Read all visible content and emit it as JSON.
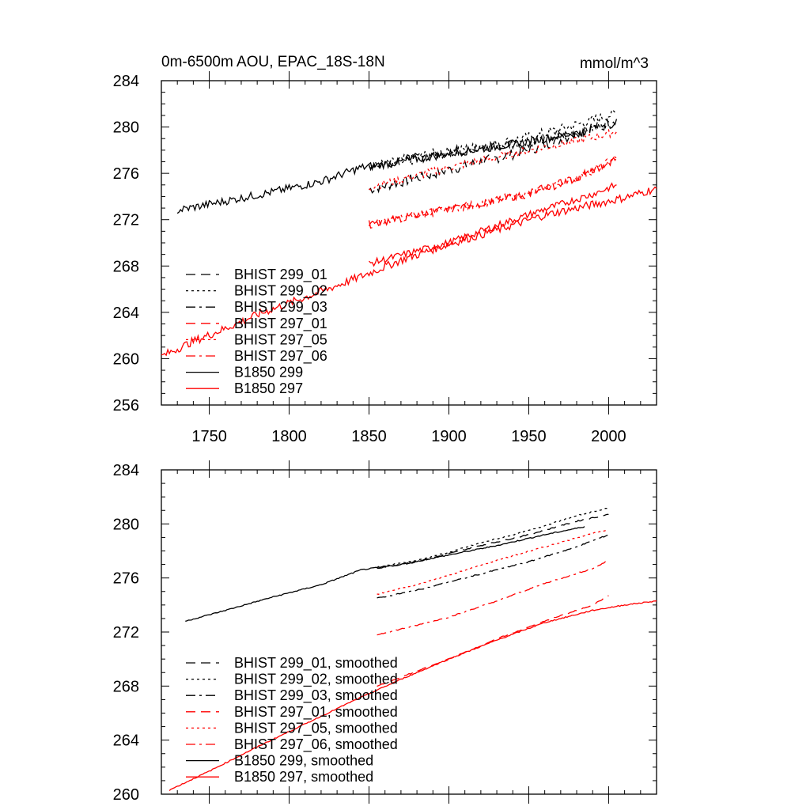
{
  "header": {
    "title": "0m-6500m AOU, EPAC_18S-18N",
    "units": "mmol/m^3"
  },
  "chart_data": [
    {
      "type": "line",
      "title": "0m-6500m AOU, EPAC_18S-18N",
      "units": "mmol/m^3",
      "xlim": [
        1720,
        2030
      ],
      "ylim": [
        256,
        284
      ],
      "xticks": [
        1750,
        1800,
        1850,
        1900,
        1950,
        2000
      ],
      "yticks": [
        256,
        260,
        264,
        268,
        272,
        276,
        280,
        284
      ],
      "show_xtick_labels": true,
      "legend_position": "bottom-left",
      "series": [
        {
          "name": "BHIST 299_01",
          "color": "#000000",
          "dash": "dashed",
          "noise": 0.45,
          "points": [
            [
              1850,
              274.6
            ],
            [
              1880,
              275.6
            ],
            [
              1900,
              276.3
            ],
            [
              1920,
              277.0
            ],
            [
              1950,
              278.0
            ],
            [
              1980,
              279.4
            ],
            [
              2005,
              280.7
            ]
          ]
        },
        {
          "name": "BHIST 299_02",
          "color": "#000000",
          "dash": "dotted",
          "noise": 0.45,
          "points": [
            [
              1850,
              276.5
            ],
            [
              1880,
              277.4
            ],
            [
              1900,
              277.9
            ],
            [
              1920,
              278.3
            ],
            [
              1950,
              279.1
            ],
            [
              1980,
              280.2
            ],
            [
              2005,
              281.2
            ]
          ]
        },
        {
          "name": "BHIST 299_03",
          "color": "#000000",
          "dash": "dashdot",
          "noise": 0.45,
          "points": [
            [
              1850,
              276.7
            ],
            [
              1880,
              277.3
            ],
            [
              1900,
              277.9
            ],
            [
              1920,
              278.2
            ],
            [
              1950,
              278.7
            ],
            [
              1980,
              279.5
            ],
            [
              2005,
              280.5
            ]
          ]
        },
        {
          "name": "BHIST 297_01",
          "color": "#ff0000",
          "dash": "dashed",
          "noise": 0.35,
          "points": [
            [
              1850,
              271.6
            ],
            [
              1880,
              272.4
            ],
            [
              1900,
              272.9
            ],
            [
              1920,
              273.4
            ],
            [
              1950,
              274.2
            ],
            [
              1980,
              275.6
            ],
            [
              2005,
              277.3
            ]
          ]
        },
        {
          "name": "BHIST 297_05",
          "color": "#ff0000",
          "dash": "dotted",
          "noise": 0.35,
          "points": [
            [
              1850,
              274.8
            ],
            [
              1880,
              275.8
            ],
            [
              1900,
              276.5
            ],
            [
              1920,
              277.1
            ],
            [
              1950,
              278.0
            ],
            [
              1980,
              278.8
            ],
            [
              2005,
              279.6
            ]
          ]
        },
        {
          "name": "BHIST 297_06",
          "color": "#ff0000",
          "dash": "dashdot",
          "noise": 0.35,
          "points": [
            [
              1850,
              271.7
            ],
            [
              1880,
              272.4
            ],
            [
              1900,
              272.9
            ],
            [
              1920,
              273.4
            ],
            [
              1950,
              274.3
            ],
            [
              1980,
              275.6
            ],
            [
              2005,
              277.3
            ]
          ]
        },
        {
          "name": "B1850 299",
          "color": "#000000",
          "dash": "solid",
          "noise": 0.35,
          "points": [
            [
              1730,
              272.8
            ],
            [
              1760,
              273.6
            ],
            [
              1790,
              274.4
            ],
            [
              1820,
              275.3
            ],
            [
              1845,
              276.5
            ],
            [
              1870,
              277.0
            ],
            [
              1900,
              277.7
            ],
            [
              1930,
              278.3
            ],
            [
              1960,
              279.0
            ],
            [
              1985,
              279.6
            ]
          ]
        },
        {
          "name": "B1850 297",
          "color": "#ff0000",
          "dash": "solid",
          "noise": 0.35,
          "points": [
            [
              1720,
              260.2
            ],
            [
              1740,
              261.5
            ],
            [
              1760,
              262.6
            ],
            [
              1780,
              263.8
            ],
            [
              1800,
              264.8
            ],
            [
              1820,
              265.8
            ],
            [
              1845,
              267.1
            ],
            [
              1870,
              268.5
            ],
            [
              1900,
              269.9
            ],
            [
              1930,
              271.1
            ],
            [
              1960,
              272.4
            ],
            [
              1990,
              273.3
            ],
            [
              2010,
              273.9
            ],
            [
              2030,
              274.7
            ]
          ]
        },
        {
          "name": "",
          "color": "#ff0000",
          "dash": "solid",
          "noise": 0.3,
          "points": [
            [
              1850,
              268.2
            ],
            [
              1880,
              269.3
            ],
            [
              1900,
              270.0
            ],
            [
              1930,
              271.5
            ],
            [
              1960,
              272.9
            ],
            [
              1990,
              274.2
            ],
            [
              2005,
              275.0
            ]
          ]
        }
      ]
    },
    {
      "type": "line",
      "xlim": [
        1720,
        2030
      ],
      "ylim": [
        260,
        284
      ],
      "xticks": [
        1750,
        1800,
        1850,
        1900,
        1950,
        2000
      ],
      "yticks": [
        260,
        264,
        268,
        272,
        276,
        280,
        284
      ],
      "show_xtick_labels": false,
      "legend_position": "bottom-left",
      "series": [
        {
          "name": "BHIST 299_01, smoothed",
          "color": "#000000",
          "dash": "dashed",
          "noise": 0.04,
          "points": [
            [
              1855,
              276.7
            ],
            [
              1880,
              277.2
            ],
            [
              1900,
              277.8
            ],
            [
              1920,
              278.4
            ],
            [
              1950,
              279.2
            ],
            [
              1980,
              280.2
            ],
            [
              2000,
              280.7
            ]
          ]
        },
        {
          "name": "BHIST 299_02, smoothed",
          "color": "#000000",
          "dash": "dotted",
          "noise": 0.04,
          "points": [
            [
              1855,
              276.8
            ],
            [
              1880,
              277.3
            ],
            [
              1900,
              277.9
            ],
            [
              1920,
              278.6
            ],
            [
              1950,
              279.5
            ],
            [
              1980,
              280.6
            ],
            [
              2000,
              281.2
            ]
          ]
        },
        {
          "name": "BHIST 299_03, smoothed",
          "color": "#000000",
          "dash": "dashdot",
          "noise": 0.04,
          "points": [
            [
              1855,
              274.5
            ],
            [
              1880,
              275.1
            ],
            [
              1900,
              275.7
            ],
            [
              1920,
              276.3
            ],
            [
              1950,
              277.2
            ],
            [
              1980,
              278.3
            ],
            [
              2000,
              279.2
            ]
          ]
        },
        {
          "name": "BHIST 297_01, smoothed",
          "color": "#ff0000",
          "dash": "dashed",
          "noise": 0.04,
          "points": [
            [
              1855,
              268.0
            ],
            [
              1880,
              269.1
            ],
            [
              1900,
              270.0
            ],
            [
              1930,
              271.5
            ],
            [
              1960,
              272.8
            ],
            [
              1990,
              274.0
            ],
            [
              2000,
              274.7
            ]
          ]
        },
        {
          "name": "BHIST 297_05, smoothed",
          "color": "#ff0000",
          "dash": "dotted",
          "noise": 0.04,
          "points": [
            [
              1855,
              274.8
            ],
            [
              1880,
              275.5
            ],
            [
              1900,
              276.2
            ],
            [
              1930,
              277.3
            ],
            [
              1960,
              278.3
            ],
            [
              1990,
              279.3
            ],
            [
              2000,
              279.5
            ]
          ]
        },
        {
          "name": "BHIST 297_06, smoothed",
          "color": "#ff0000",
          "dash": "dashdot",
          "noise": 0.04,
          "points": [
            [
              1855,
              271.8
            ],
            [
              1880,
              272.5
            ],
            [
              1900,
              273.1
            ],
            [
              1930,
              274.3
            ],
            [
              1960,
              275.6
            ],
            [
              1990,
              276.7
            ],
            [
              2000,
              277.3
            ]
          ]
        },
        {
          "name": "B1850 299, smoothed",
          "color": "#000000",
          "dash": "solid",
          "noise": 0.04,
          "points": [
            [
              1735,
              272.8
            ],
            [
              1760,
              273.6
            ],
            [
              1790,
              274.6
            ],
            [
              1820,
              275.5
            ],
            [
              1845,
              276.6
            ],
            [
              1870,
              277.0
            ],
            [
              1900,
              277.7
            ],
            [
              1930,
              278.4
            ],
            [
              1960,
              279.2
            ],
            [
              1985,
              279.8
            ]
          ]
        },
        {
          "name": "B1850 297, smoothed",
          "color": "#ff0000",
          "dash": "solid",
          "noise": 0.04,
          "points": [
            [
              1725,
              260.3
            ],
            [
              1750,
              261.7
            ],
            [
              1780,
              263.5
            ],
            [
              1810,
              265.2
            ],
            [
              1840,
              266.9
            ],
            [
              1870,
              268.5
            ],
            [
              1900,
              270.0
            ],
            [
              1930,
              271.4
            ],
            [
              1960,
              272.7
            ],
            [
              1990,
              273.6
            ],
            [
              2010,
              274.0
            ],
            [
              2030,
              274.3
            ]
          ]
        }
      ]
    }
  ]
}
